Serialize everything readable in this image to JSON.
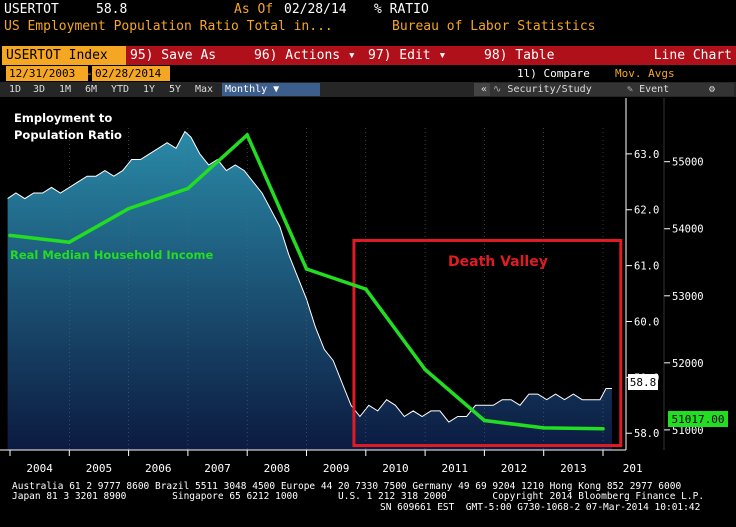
{
  "header": {
    "ticker": "USERTOT",
    "last_value": "58.8",
    "as_of_label": "As Of",
    "as_of_date": "02/28/14",
    "unit": "% RATIO",
    "description": "US Employment Population Ratio Total in...",
    "source": "Bureau of Labor Statistics"
  },
  "toolbar": {
    "index_label": "USERTOT Index",
    "save_label": "95) Save As",
    "actions_label": "96) Actions ▾",
    "edit_label": "97) Edit ▾",
    "table_label": "98) Table",
    "chart_type_label": "Line Chart"
  },
  "range": {
    "start_date": "12/31/2003",
    "end_date": "02/28/2014",
    "compare_label": "1l) Compare",
    "compare_value": "Mov. Avgs"
  },
  "periods": [
    "1D",
    "3D",
    "1M",
    "6M",
    "YTD",
    "1Y",
    "5Y",
    "Max"
  ],
  "frequency": "Monthly ▼",
  "right_controls": {
    "collapse": "«",
    "security_label": "Security/Study",
    "event_label": "Event",
    "gear": "⚙"
  },
  "chart_data": {
    "type": "line",
    "x_tick_labels": [
      "2004",
      "2005",
      "2006",
      "2007",
      "2008",
      "2009",
      "2010",
      "2011",
      "2012",
      "2013",
      "201"
    ],
    "annotations": {
      "employment_label": [
        "Employment to",
        "Population Ratio"
      ],
      "income_label": "Real Median Household Income",
      "valley_label": "Death Valley"
    },
    "colors": {
      "area_top": "#2a8aa8",
      "area_bottom": "#0c1a40",
      "income_line": "#22dd22",
      "valley_box": "#e01b24"
    },
    "employment_axis": {
      "ylim": [
        57.7,
        64.0
      ],
      "ticks": [
        58.0,
        59.0,
        60.0,
        61.0,
        62.0,
        63.0
      ],
      "last_label": "58.8"
    },
    "income_axis": {
      "ylim": [
        50700,
        55950
      ],
      "ticks": [
        51000,
        52000,
        53000,
        54000,
        55000
      ],
      "last_label": "51017.00"
    },
    "valley_box": {
      "x_start": 2009.8,
      "x_end": 2014.3,
      "y_top": 61.45,
      "y_bottom": 57.78
    },
    "series": [
      {
        "name": "Employment to Population Ratio",
        "axis": "left",
        "x": [
          2003.96,
          2004.1,
          2004.25,
          2004.4,
          2004.55,
          2004.7,
          2004.85,
          2005.0,
          2005.15,
          2005.3,
          2005.45,
          2005.6,
          2005.75,
          2005.9,
          2006.05,
          2006.2,
          2006.35,
          2006.5,
          2006.65,
          2006.8,
          2006.95,
          2007.05,
          2007.2,
          2007.35,
          2007.5,
          2007.65,
          2007.8,
          2007.95,
          2008.1,
          2008.25,
          2008.4,
          2008.55,
          2008.7,
          2008.85,
          2009.0,
          2009.15,
          2009.3,
          2009.45,
          2009.6,
          2009.75,
          2009.9,
          2010.05,
          2010.2,
          2010.35,
          2010.5,
          2010.65,
          2010.8,
          2010.95,
          2011.1,
          2011.25,
          2011.4,
          2011.55,
          2011.7,
          2011.85,
          2012.0,
          2012.15,
          2012.3,
          2012.45,
          2012.6,
          2012.75,
          2012.9,
          2013.05,
          2013.2,
          2013.35,
          2013.5,
          2013.65,
          2013.8,
          2013.95,
          2014.05,
          2014.15
        ],
        "values": [
          62.2,
          62.3,
          62.2,
          62.3,
          62.3,
          62.4,
          62.3,
          62.4,
          62.5,
          62.6,
          62.6,
          62.7,
          62.6,
          62.7,
          62.9,
          62.9,
          63.0,
          63.1,
          63.2,
          63.1,
          63.4,
          63.3,
          63.0,
          62.8,
          62.9,
          62.7,
          62.8,
          62.7,
          62.5,
          62.3,
          62.0,
          61.7,
          61.2,
          60.8,
          60.4,
          59.9,
          59.5,
          59.3,
          58.9,
          58.5,
          58.3,
          58.5,
          58.4,
          58.6,
          58.5,
          58.3,
          58.4,
          58.3,
          58.4,
          58.4,
          58.2,
          58.3,
          58.3,
          58.5,
          58.5,
          58.5,
          58.6,
          58.6,
          58.5,
          58.7,
          58.7,
          58.6,
          58.7,
          58.6,
          58.7,
          58.6,
          58.6,
          58.6,
          58.8,
          58.8
        ]
      },
      {
        "name": "Real Median Household Income",
        "axis": "right",
        "x": [
          2004.0,
          2005.0,
          2006.0,
          2007.0,
          2008.0,
          2009.0,
          2010.0,
          2011.0,
          2012.0,
          2013.0,
          2014.0
        ],
        "values": [
          53900,
          53800,
          54300,
          54600,
          55400,
          53400,
          53100,
          51900,
          51140,
          51030,
          51017
        ]
      }
    ]
  },
  "footer": {
    "line1": "Australia 61 2 9777 8600 Brazil 5511 3048 4500 Europe 44 20 7330 7500 Germany 49 69 9204 1210 Hong Kong 852 2977 6000",
    "line2": "Japan 81 3 3201 8900        Singapore 65 6212 1000       U.S. 1 212 318 2000        Copyright 2014 Bloomberg Finance L.P.",
    "line3": "SN 609661 EST  GMT-5:00 G730-1068-2 07-Mar-2014 10:01:42"
  }
}
